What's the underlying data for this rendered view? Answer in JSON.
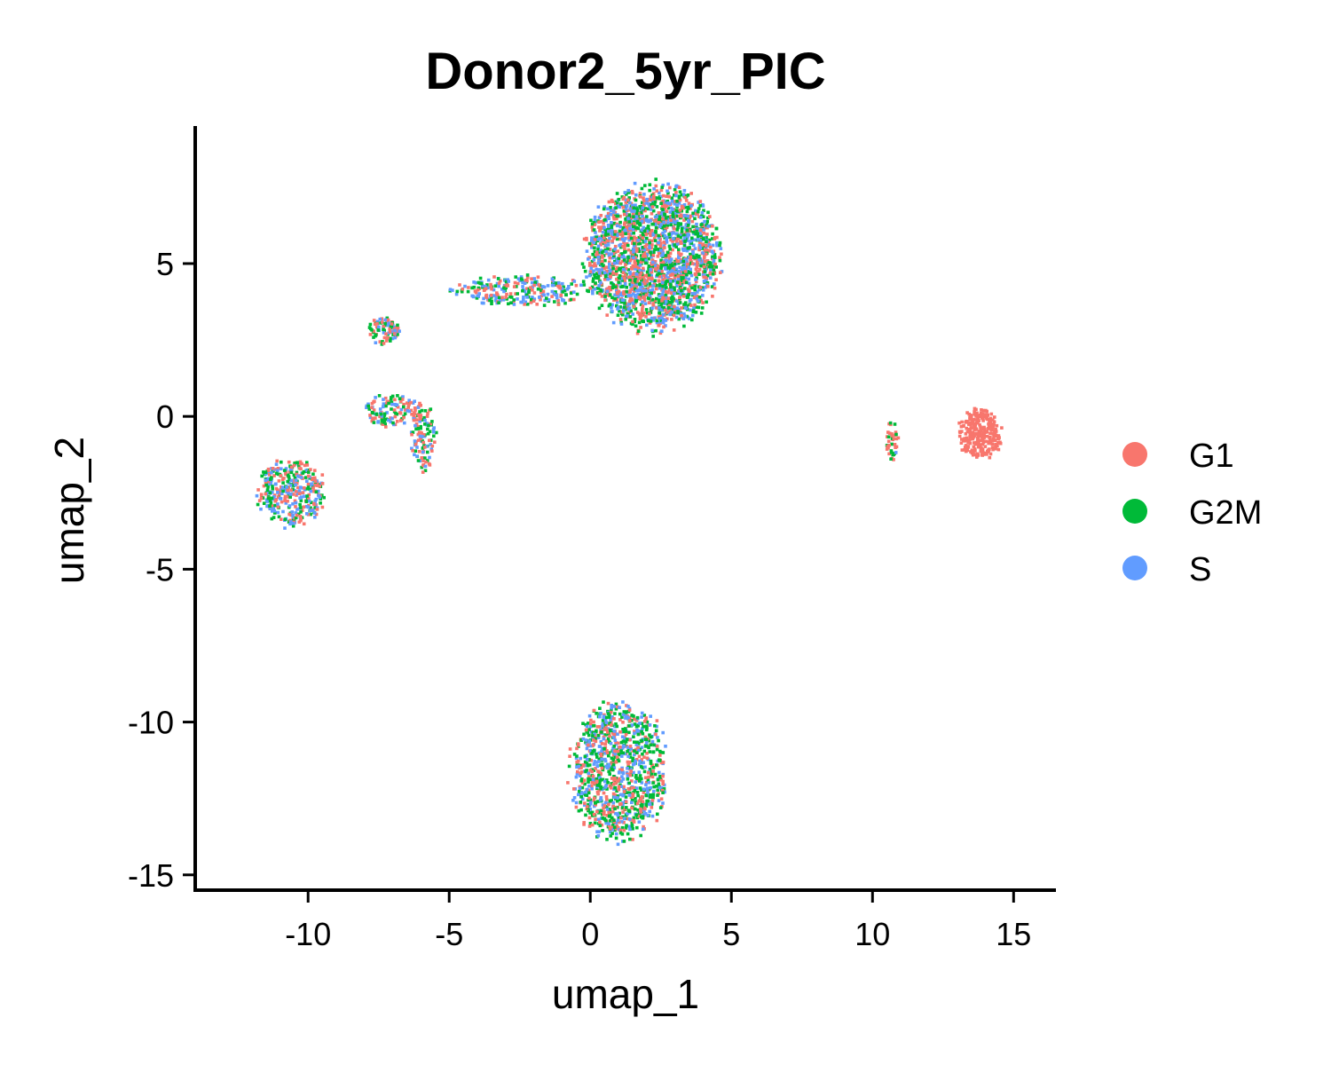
{
  "chart_data": {
    "type": "scatter",
    "title": "Donor2_5yr_PIC",
    "xlabel": "umap_1",
    "ylabel": "umap_2",
    "xlim": [
      -14,
      16.5
    ],
    "ylim": [
      -15.5,
      9.5
    ],
    "x_ticks": [
      -10,
      -5,
      0,
      5,
      10,
      15
    ],
    "y_ticks": [
      -15,
      -10,
      -5,
      0,
      5
    ],
    "x_tick_labels": [
      "-10",
      "-5",
      "0",
      "5",
      "10",
      "15"
    ],
    "y_tick_labels": [
      "-15",
      "-10",
      "-5",
      "0",
      "5"
    ],
    "grid": false,
    "legend_position": "right",
    "series": [
      {
        "name": "G1",
        "color": "#F8766D"
      },
      {
        "name": "G2M",
        "color": "#00BA38"
      },
      {
        "name": "S",
        "color": "#619CFF"
      }
    ],
    "clusters": [
      {
        "name_hint": "large-top",
        "center": [
          2.2,
          5.2
        ],
        "rx": 2.6,
        "ry": 2.6,
        "n": 2200,
        "mix": [
          0.36,
          0.34,
          0.3
        ]
      },
      {
        "name_hint": "bridge",
        "center": [
          -2.5,
          4.1
        ],
        "rx": 2.6,
        "ry": 0.55,
        "n": 260,
        "mix": [
          0.33,
          0.35,
          0.32
        ]
      },
      {
        "name_hint": "small-upper-left",
        "center": [
          -7.3,
          2.8
        ],
        "rx": 0.6,
        "ry": 0.5,
        "n": 90,
        "mix": [
          0.34,
          0.33,
          0.33
        ]
      },
      {
        "name_hint": "mid-left",
        "center": [
          -7.0,
          0.2
        ],
        "rx": 1.1,
        "ry": 0.6,
        "n": 130,
        "mix": [
          0.4,
          0.35,
          0.25
        ]
      },
      {
        "name_hint": "mid-left-tail",
        "center": [
          -5.9,
          -0.7
        ],
        "rx": 0.5,
        "ry": 1.2,
        "n": 110,
        "mix": [
          0.3,
          0.4,
          0.3
        ]
      },
      {
        "name_hint": "far-left",
        "center": [
          -10.6,
          -2.5
        ],
        "rx": 1.3,
        "ry": 1.2,
        "n": 380,
        "mix": [
          0.36,
          0.3,
          0.34
        ]
      },
      {
        "name_hint": "bottom",
        "center": [
          1.0,
          -11.6
        ],
        "rx": 1.9,
        "ry": 2.5,
        "n": 1050,
        "mix": [
          0.3,
          0.38,
          0.32
        ]
      },
      {
        "name_hint": "right-large",
        "center": [
          13.8,
          -0.6
        ],
        "rx": 0.85,
        "ry": 0.9,
        "n": 300,
        "mix": [
          1.0,
          0.0,
          0.0
        ]
      },
      {
        "name_hint": "right-small",
        "center": [
          10.7,
          -0.8
        ],
        "rx": 0.25,
        "ry": 0.7,
        "n": 40,
        "mix": [
          0.55,
          0.4,
          0.05
        ]
      }
    ]
  }
}
